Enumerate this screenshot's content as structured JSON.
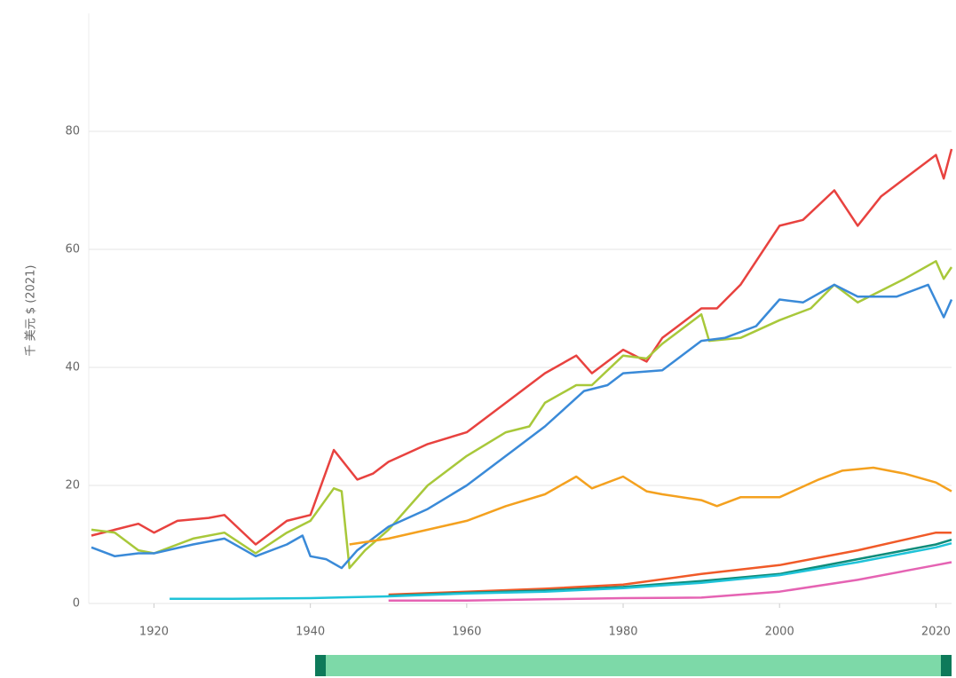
{
  "chart_data": {
    "type": "line",
    "y_label": "千 美元 $ (2021)",
    "xlim": [
      1912,
      2022
    ],
    "xticks": [
      1920,
      1940,
      1960,
      1980,
      2000,
      2020
    ],
    "ylim": [
      0,
      100
    ],
    "yticks": [
      0,
      20,
      40,
      60,
      80
    ],
    "grid": true,
    "series": [
      {
        "color": "#e8423f",
        "x": [
          1912,
          1915,
          1918,
          1920,
          1923,
          1927,
          1929,
          1933,
          1937,
          1940,
          1943,
          1946,
          1948,
          1950,
          1955,
          1960,
          1965,
          1970,
          1974,
          1976,
          1980,
          1983,
          1985,
          1990,
          1992,
          1995,
          2000,
          2003,
          2007,
          2010,
          2013,
          2016,
          2020,
          2021,
          2022
        ],
        "values": [
          11.5,
          12.5,
          13.5,
          12,
          14,
          14.5,
          15,
          10,
          14,
          15,
          26,
          21,
          22,
          24,
          27,
          29,
          34,
          39,
          42,
          39,
          43,
          41,
          45,
          50,
          50,
          54,
          64,
          65,
          70,
          64,
          69,
          72,
          76,
          72,
          77
        ]
      },
      {
        "color": "#a8c83a",
        "x": [
          1912,
          1915,
          1918,
          1920,
          1925,
          1929,
          1933,
          1937,
          1940,
          1943,
          1944,
          1945,
          1947,
          1950,
          1955,
          1960,
          1965,
          1968,
          1970,
          1974,
          1976,
          1980,
          1983,
          1985,
          1990,
          1991,
          1995,
          2000,
          2004,
          2007,
          2010,
          2013,
          2016,
          2020,
          2021,
          2022
        ],
        "values": [
          12.5,
          12,
          9,
          8.5,
          11,
          12,
          8.5,
          12,
          14,
          19.5,
          19,
          6,
          9,
          12.5,
          20,
          25,
          29,
          30,
          34,
          37,
          37,
          42,
          41.5,
          44,
          49,
          44.5,
          45,
          48,
          50,
          54,
          51,
          53,
          55,
          58,
          55,
          57
        ]
      },
      {
        "color": "#3a8ad8",
        "x": [
          1912,
          1915,
          1918,
          1920,
          1925,
          1929,
          1933,
          1937,
          1939,
          1940,
          1942,
          1944,
          1946,
          1950,
          1955,
          1960,
          1965,
          1970,
          1975,
          1978,
          1980,
          1985,
          1990,
          1993,
          1997,
          2000,
          2003,
          2007,
          2010,
          2015,
          2019,
          2021,
          2022
        ],
        "values": [
          9.5,
          8,
          8.5,
          8.5,
          10,
          11,
          8,
          10,
          11.5,
          8,
          7.5,
          6,
          9,
          13,
          16,
          20,
          25,
          30,
          36,
          37,
          39,
          39.5,
          44.5,
          45,
          47,
          51.5,
          51,
          54,
          52,
          52,
          54,
          48.5,
          51.5
        ]
      },
      {
        "color": "#f4a11f",
        "x": [
          1945,
          1950,
          1955,
          1960,
          1965,
          1970,
          1974,
          1976,
          1980,
          1983,
          1985,
          1990,
          1992,
          1995,
          2000,
          2005,
          2008,
          2012,
          2016,
          2020,
          2022
        ],
        "values": [
          10,
          11,
          12.5,
          14,
          16.5,
          18.5,
          21.5,
          19.5,
          21.5,
          19,
          18.5,
          17.5,
          16.5,
          18,
          18,
          21,
          22.5,
          23,
          22,
          20.5,
          19
        ]
      },
      {
        "color": "#f05a28",
        "x": [
          1950,
          1960,
          1970,
          1980,
          1990,
          2000,
          2010,
          2020,
          2022
        ],
        "values": [
          1.5,
          2,
          2.5,
          3.2,
          5,
          6.5,
          9,
          12,
          12
        ]
      },
      {
        "color": "#0e8c7a",
        "x": [
          1950,
          1960,
          1970,
          1980,
          1990,
          2000,
          2010,
          2020,
          2022
        ],
        "values": [
          1.3,
          1.8,
          2.2,
          2.8,
          3.8,
          5,
          7.5,
          10,
          10.8
        ]
      },
      {
        "color": "#1fc3d8",
        "x": [
          1922,
          1930,
          1940,
          1950,
          1960,
          1970,
          1980,
          1990,
          2000,
          2010,
          2020,
          2022
        ],
        "values": [
          0.8,
          0.8,
          0.9,
          1.2,
          1.7,
          2,
          2.6,
          3.5,
          4.8,
          7,
          9.5,
          10.2
        ]
      },
      {
        "color": "#e563b3",
        "x": [
          1950,
          1960,
          1970,
          1980,
          1990,
          2000,
          2010,
          2020,
          2022
        ],
        "values": [
          0.5,
          0.5,
          0.7,
          0.9,
          1,
          2,
          4,
          6.5,
          7
        ]
      }
    ]
  }
}
